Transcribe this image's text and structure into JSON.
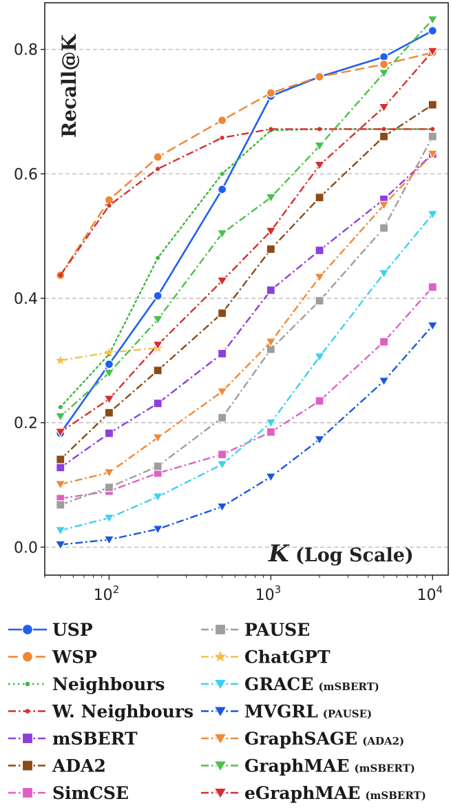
{
  "chart_data": {
    "type": "line",
    "x_scale": "log",
    "x": [
      50,
      100,
      200,
      500,
      1000,
      2000,
      5000,
      10000
    ],
    "xlim": [
      40,
      12500
    ],
    "ylim": [
      -0.045,
      0.875
    ],
    "xticks": [
      {
        "value": 100,
        "base": "10",
        "exp": "2"
      },
      {
        "value": 1000,
        "base": "10",
        "exp": "3"
      },
      {
        "value": 10000,
        "base": "10",
        "exp": "4"
      }
    ],
    "yticks": [
      {
        "value": 0.0,
        "label": "0.0"
      },
      {
        "value": 0.2,
        "label": "0.2"
      },
      {
        "value": 0.4,
        "label": "0.4"
      },
      {
        "value": 0.6,
        "label": "0.6"
      },
      {
        "value": 0.8,
        "label": "0.8"
      }
    ],
    "grid": "horizontal dashed",
    "ylabel": "Recall@K",
    "xlabel": {
      "var": "K",
      "rest": " (Log Scale)"
    },
    "legend_placement": "below",
    "series": [
      {
        "name": "USP",
        "sub": "",
        "color": "#1f5ff0",
        "dash": "solid",
        "marker": "circle",
        "x": [
          50,
          100,
          200,
          500,
          1000,
          2000,
          5000,
          10000
        ],
        "values": [
          0.183,
          0.294,
          0.404,
          0.575,
          0.725,
          0.756,
          0.788,
          0.83
        ]
      },
      {
        "name": "WSP",
        "sub": "",
        "color": "#ef8632",
        "dash": "dashed",
        "marker": "circle",
        "x": [
          50,
          100,
          200,
          500,
          1000,
          2000,
          5000,
          10000
        ],
        "values": [
          0.437,
          0.558,
          0.627,
          0.686,
          0.73,
          0.756,
          0.776,
          0.795
        ]
      },
      {
        "name": "Neighbours",
        "sub": "",
        "color": "#3cb93c",
        "dash": "dotted",
        "marker": "smalldot",
        "x": [
          50,
          100,
          200,
          500,
          1000,
          2000,
          5000,
          10000
        ],
        "values": [
          0.225,
          0.31,
          0.465,
          0.6,
          0.67,
          0.672,
          0.672,
          0.672
        ]
      },
      {
        "name": "W. Neighbours",
        "sub": "",
        "color": "#d62f2f",
        "dash": "dashdot",
        "marker": "smalldot",
        "x": [
          50,
          100,
          200,
          500,
          1000,
          2000,
          5000,
          10000
        ],
        "values": [
          0.437,
          0.549,
          0.608,
          0.658,
          0.672,
          0.672,
          0.672,
          0.672
        ]
      },
      {
        "name": "mSBERT",
        "sub": "",
        "color": "#8d3fdb",
        "dash": "dashdot",
        "marker": "square",
        "x": [
          50,
          100,
          200,
          500,
          1000,
          2000,
          5000,
          10000
        ],
        "values": [
          0.128,
          0.183,
          0.231,
          0.311,
          0.413,
          0.477,
          0.559,
          0.632
        ]
      },
      {
        "name": "ADA2",
        "sub": "",
        "color": "#8b4a16",
        "dash": "dashdot",
        "marker": "square",
        "x": [
          50,
          100,
          200,
          500,
          1000,
          2000,
          5000,
          10000
        ],
        "values": [
          0.141,
          0.216,
          0.284,
          0.376,
          0.479,
          0.562,
          0.66,
          0.711
        ]
      },
      {
        "name": "SimCSE",
        "sub": "",
        "color": "#e05fc4",
        "dash": "dashdot",
        "marker": "square",
        "x": [
          50,
          100,
          200,
          500,
          1000,
          2000,
          5000,
          10000
        ],
        "values": [
          0.078,
          0.09,
          0.119,
          0.149,
          0.185,
          0.235,
          0.33,
          0.418
        ]
      },
      {
        "name": "PAUSE",
        "sub": "",
        "color": "#9e9e9e",
        "dash": "dashdot",
        "marker": "square",
        "x": [
          50,
          100,
          200,
          500,
          1000,
          2000,
          5000,
          10000
        ],
        "values": [
          0.068,
          0.096,
          0.13,
          0.208,
          0.318,
          0.396,
          0.513,
          0.66
        ]
      },
      {
        "name": "ChatGPT",
        "sub": "",
        "color": "#f5c04a",
        "dash": "dashdot",
        "marker": "star",
        "x": [
          50,
          100,
          200
        ],
        "values": [
          0.3,
          0.313,
          0.32
        ]
      },
      {
        "name": "GRACE",
        "sub": "(mSBERT)",
        "color": "#3fd0ef",
        "dash": "dashdot",
        "marker": "tri",
        "x": [
          50,
          100,
          200,
          500,
          1000,
          2000,
          5000,
          10000
        ],
        "values": [
          0.027,
          0.047,
          0.081,
          0.133,
          0.2,
          0.306,
          0.44,
          0.535
        ]
      },
      {
        "name": "MVGRL",
        "sub": "(PAUSE)",
        "color": "#1a57e0",
        "dash": "dashdot",
        "marker": "tri",
        "x": [
          50,
          100,
          200,
          500,
          1000,
          2000,
          5000,
          10000
        ],
        "values": [
          0.004,
          0.012,
          0.029,
          0.065,
          0.113,
          0.173,
          0.267,
          0.356
        ]
      },
      {
        "name": "GraphSAGE",
        "sub": "(ADA2)",
        "color": "#f08a3a",
        "dash": "dashdot",
        "marker": "tri",
        "x": [
          50,
          100,
          200,
          500,
          1000,
          2000,
          5000,
          10000
        ],
        "values": [
          0.101,
          0.12,
          0.176,
          0.25,
          0.33,
          0.434,
          0.55,
          0.632
        ]
      },
      {
        "name": "GraphMAE",
        "sub": "(mSBERT)",
        "color": "#4cc04c",
        "dash": "dashdot",
        "marker": "tri",
        "x": [
          50,
          100,
          200,
          500,
          1000,
          2000,
          5000,
          10000
        ],
        "values": [
          0.21,
          0.28,
          0.366,
          0.504,
          0.562,
          0.645,
          0.762,
          0.848
        ]
      },
      {
        "name": "eGraphMAE",
        "sub": "(mSBERT)",
        "color": "#d62f2f",
        "dash": "dashdot",
        "marker": "tri",
        "x": [
          50,
          100,
          200,
          500,
          1000,
          2000,
          5000,
          10000
        ],
        "values": [
          0.185,
          0.238,
          0.325,
          0.428,
          0.508,
          0.614,
          0.707,
          0.797
        ]
      }
    ]
  }
}
